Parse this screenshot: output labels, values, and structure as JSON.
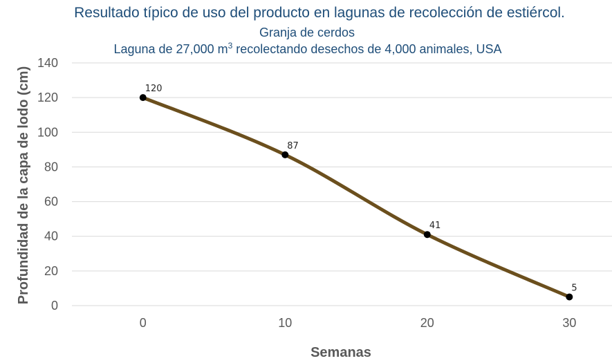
{
  "chart_data": {
    "type": "line",
    "title": "Resultado típico de uso del producto en lagunas de recolección de estiércol.",
    "subtitle": "Granja de cerdos",
    "subtitle2": {
      "before": "Laguna de 27,000 m",
      "sup": "3",
      "after": " recolectando desechos de 4,000 animales, USA"
    },
    "xlabel": "Semanas",
    "ylabel": "Profundidad de la capa de lodo (cm)",
    "x": [
      0,
      10,
      20,
      30
    ],
    "values": [
      120,
      87,
      41,
      5
    ],
    "data_labels": [
      "120",
      "87",
      "41",
      "5"
    ],
    "x_ticks": [
      "0",
      "10",
      "20",
      "30"
    ],
    "y_ticks": [
      "0",
      "20",
      "40",
      "60",
      "80",
      "100",
      "120",
      "140"
    ],
    "ylim": [
      0,
      140
    ],
    "xlim": [
      -5,
      33
    ],
    "grid": true,
    "line_color": "#6b4f1d",
    "marker_color": "#000000",
    "grid_color": "#d9d9d9"
  }
}
